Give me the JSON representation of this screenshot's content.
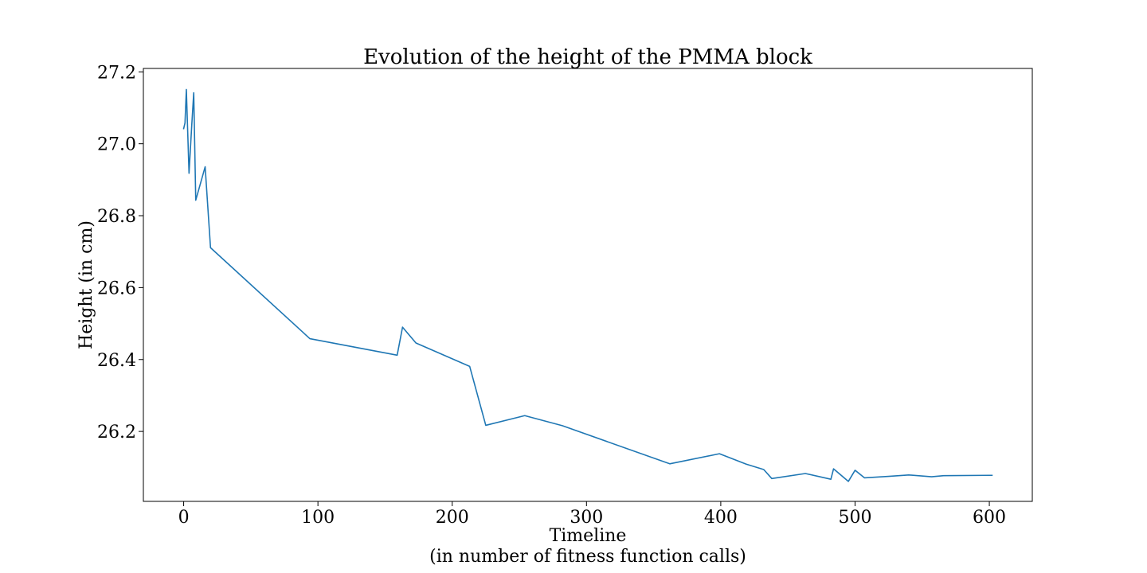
{
  "chart_data": {
    "type": "line",
    "title": "Evolution of the height of the PMMA block",
    "xlabel": "Timeline",
    "xlabel_line2": "(in number of fitness function calls)",
    "ylabel": "Height (in cm)",
    "xlim": [
      -30,
      632
    ],
    "ylim": [
      26.0055,
      27.2095
    ],
    "x_ticks": [
      0,
      100,
      200,
      300,
      400,
      500,
      600
    ],
    "x_tick_labels": [
      "0",
      "100",
      "200",
      "300",
      "400",
      "500",
      "600"
    ],
    "y_ticks": [
      26.2,
      26.4,
      26.6,
      26.8,
      27.0,
      27.2
    ],
    "y_tick_labels": [
      "26.2",
      "26.4",
      "26.6",
      "26.8",
      "27.0",
      "27.2"
    ],
    "grid": false,
    "line_color": "#1f77b4",
    "series": [
      {
        "x": [
          0,
          1,
          2,
          4,
          6,
          7.5,
          9,
          16,
          20,
          94,
          159,
          163,
          173,
          213,
          225,
          254,
          282,
          362,
          399,
          419,
          432,
          438,
          463,
          482,
          484,
          495,
          500,
          507,
          525,
          540,
          557,
          566,
          600,
          602
        ],
        "y": [
          27.042,
          27.058,
          27.151,
          26.918,
          27.05,
          27.142,
          26.843,
          26.936,
          26.711,
          26.458,
          26.412,
          26.49,
          26.446,
          26.381,
          26.217,
          26.244,
          26.216,
          26.11,
          26.138,
          26.109,
          26.094,
          26.069,
          26.083,
          26.067,
          26.096,
          26.061,
          26.092,
          26.071,
          26.075,
          26.079,
          26.074,
          26.077,
          26.078,
          26.078
        ]
      }
    ]
  }
}
